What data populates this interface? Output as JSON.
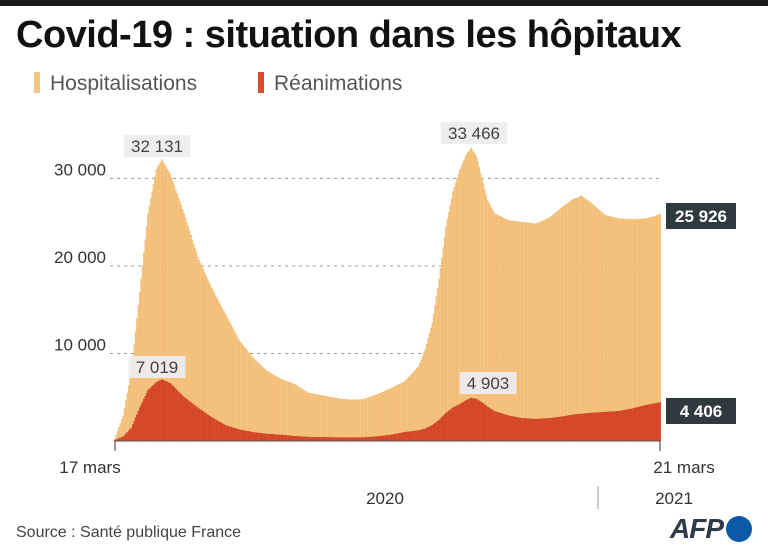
{
  "title": "Covid-19 : situation dans les hôpitaux",
  "legend": {
    "hosp_label": "Hospitalisations",
    "rea_label": "Réanimations"
  },
  "source": "Source : Santé publique France",
  "logo_text": "AFP",
  "colors": {
    "hospitalisations": "#f7c580",
    "reanimations": "#dc4b2a",
    "badge": "#2e3a3e",
    "grid": "#9a9a9a"
  },
  "chart_data": {
    "type": "bar",
    "start_label": "17 mars",
    "end_label": "21 mars",
    "years": [
      "2020",
      "2021"
    ],
    "ylim": [
      0,
      33466
    ],
    "yticks": [
      10000,
      20000,
      30000
    ],
    "ytick_labels": [
      "10 000",
      "20 000",
      "30 000"
    ],
    "grid": "horizontal dashed",
    "annotations": {
      "hosp_peak1": "32 131",
      "hosp_peak2": "33 466",
      "rea_peak1": "7 019",
      "rea_peak2": "4 903",
      "hosp_last": "25 926",
      "rea_last": "4 406"
    },
    "series": [
      {
        "name": "Hospitalisations",
        "anchors": [
          [
            0,
            250
          ],
          [
            6,
            2900
          ],
          [
            12,
            8000
          ],
          [
            18,
            17000
          ],
          [
            24,
            26000
          ],
          [
            30,
            31000
          ],
          [
            34,
            32131
          ],
          [
            40,
            30500
          ],
          [
            50,
            26000
          ],
          [
            60,
            21000
          ],
          [
            70,
            17500
          ],
          [
            80,
            14500
          ],
          [
            90,
            11500
          ],
          [
            100,
            9500
          ],
          [
            110,
            8000
          ],
          [
            120,
            7100
          ],
          [
            130,
            6500
          ],
          [
            140,
            5500
          ],
          [
            150,
            5200
          ],
          [
            160,
            4900
          ],
          [
            170,
            4700
          ],
          [
            180,
            4750
          ],
          [
            190,
            5300
          ],
          [
            200,
            6000
          ],
          [
            210,
            6800
          ],
          [
            220,
            8500
          ],
          [
            225,
            10500
          ],
          [
            230,
            13500
          ],
          [
            235,
            18500
          ],
          [
            240,
            24500
          ],
          [
            245,
            28500
          ],
          [
            250,
            31000
          ],
          [
            254,
            32500
          ],
          [
            258,
            33466
          ],
          [
            262,
            32500
          ],
          [
            266,
            30000
          ],
          [
            270,
            27500
          ],
          [
            275,
            26000
          ],
          [
            285,
            25200
          ],
          [
            295,
            25000
          ],
          [
            305,
            24800
          ],
          [
            315,
            25500
          ],
          [
            325,
            26800
          ],
          [
            332,
            27600
          ],
          [
            338,
            28000
          ],
          [
            345,
            27200
          ],
          [
            355,
            25800
          ],
          [
            365,
            25400
          ],
          [
            375,
            25300
          ],
          [
            385,
            25400
          ],
          [
            392,
            25700
          ],
          [
            395,
            25926
          ]
        ]
      },
      {
        "name": "Réanimations",
        "anchors": [
          [
            0,
            100
          ],
          [
            6,
            500
          ],
          [
            12,
            1500
          ],
          [
            18,
            3800
          ],
          [
            24,
            5800
          ],
          [
            30,
            6700
          ],
          [
            34,
            7019
          ],
          [
            40,
            6600
          ],
          [
            50,
            5000
          ],
          [
            60,
            3800
          ],
          [
            70,
            2700
          ],
          [
            80,
            1800
          ],
          [
            90,
            1300
          ],
          [
            100,
            1000
          ],
          [
            110,
            800
          ],
          [
            120,
            700
          ],
          [
            130,
            550
          ],
          [
            140,
            450
          ],
          [
            150,
            420
          ],
          [
            160,
            400
          ],
          [
            170,
            390
          ],
          [
            180,
            400
          ],
          [
            190,
            500
          ],
          [
            200,
            700
          ],
          [
            210,
            1000
          ],
          [
            220,
            1200
          ],
          [
            225,
            1400
          ],
          [
            230,
            1800
          ],
          [
            235,
            2400
          ],
          [
            240,
            3200
          ],
          [
            245,
            3800
          ],
          [
            250,
            4200
          ],
          [
            254,
            4600
          ],
          [
            258,
            4903
          ],
          [
            262,
            4800
          ],
          [
            266,
            4400
          ],
          [
            270,
            3900
          ],
          [
            275,
            3400
          ],
          [
            285,
            2900
          ],
          [
            295,
            2600
          ],
          [
            305,
            2500
          ],
          [
            315,
            2600
          ],
          [
            325,
            2800
          ],
          [
            332,
            3000
          ],
          [
            338,
            3100
          ],
          [
            345,
            3200
          ],
          [
            355,
            3300
          ],
          [
            365,
            3400
          ],
          [
            375,
            3700
          ],
          [
            385,
            4100
          ],
          [
            392,
            4300
          ],
          [
            395,
            4406
          ]
        ]
      }
    ]
  }
}
